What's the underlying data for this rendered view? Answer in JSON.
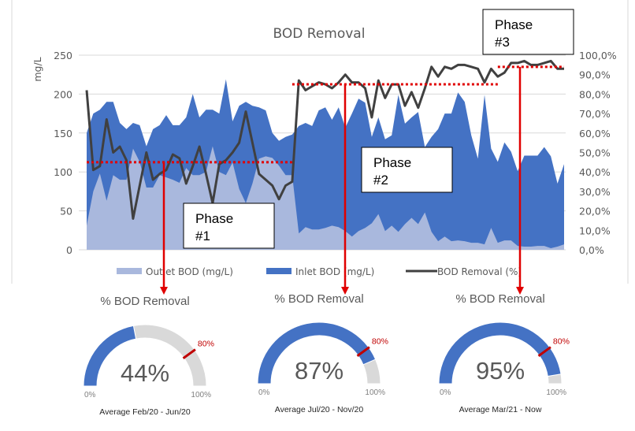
{
  "chart_data": {
    "type": "area+line",
    "title": "BOD Removal",
    "ylabel": "mg/L",
    "ylim": [
      0,
      250
    ],
    "yticks": [
      "250",
      "200",
      "150",
      "100",
      "50",
      "0"
    ],
    "y2lim": [
      0,
      100
    ],
    "y2ticks": [
      "100,0%",
      "90,0%",
      "80,0%",
      "70,0%",
      "60,0%",
      "50,0%",
      "40,0%",
      "30,0%",
      "20,0%",
      "10,0%",
      "0,0%"
    ],
    "grid": true,
    "legend_position": "bottom",
    "series": [
      {
        "name": "Outlet BOD (mg/L)",
        "type": "area",
        "axis": "left",
        "color": "#a9b8dd",
        "values": [
          31,
          75,
          98,
          63,
          96,
          90,
          90,
          130,
          113,
          80,
          80,
          96,
          93,
          90,
          86,
          105,
          96,
          96,
          100,
          133,
          100,
          96,
          112,
          78,
          60,
          85,
          117,
          120,
          118,
          108,
          96,
          96,
          21,
          29,
          26,
          26,
          28,
          31,
          29,
          24,
          17,
          24,
          28,
          34,
          46,
          24,
          31,
          23,
          33,
          41,
          33,
          48,
          23,
          11,
          17,
          11,
          12,
          11,
          9,
          9,
          7,
          28,
          9,
          12,
          12,
          5,
          4,
          4,
          5,
          5,
          2,
          4,
          7
        ]
      },
      {
        "name": "Inlet BOD (mg/L)",
        "type": "area",
        "axis": "left",
        "color": "#4472c4",
        "values": [
          150,
          175,
          180,
          190,
          190,
          163,
          155,
          163,
          160,
          133,
          155,
          160,
          173,
          160,
          160,
          170,
          200,
          170,
          180,
          180,
          175,
          219,
          165,
          185,
          190,
          185,
          183,
          179,
          150,
          140,
          145,
          148,
          159,
          163,
          159,
          179,
          183,
          167,
          183,
          157,
          175,
          194,
          189,
          145,
          170,
          142,
          147,
          199,
          162,
          170,
          177,
          132,
          145,
          155,
          175,
          175,
          202,
          190,
          147,
          117,
          199,
          130,
          113,
          138,
          126,
          101,
          121,
          121,
          121,
          132,
          120,
          85,
          110
        ]
      },
      {
        "name": "BOD Removal (%)",
        "type": "line",
        "axis": "right",
        "color": "#404040",
        "values": [
          82,
          41,
          43,
          67,
          50,
          53,
          46,
          16,
          33,
          50,
          36,
          39,
          41,
          49,
          47,
          34,
          43,
          53,
          39,
          24,
          44,
          46,
          50,
          55,
          71,
          55,
          39,
          36,
          33,
          26,
          33,
          35,
          87,
          82,
          84,
          86,
          85,
          83,
          86,
          90,
          86,
          86,
          83,
          68,
          87,
          78,
          85,
          85,
          74,
          81,
          73,
          83,
          94,
          89,
          94,
          93,
          95,
          95,
          94,
          93,
          86,
          93,
          89,
          91,
          96,
          96,
          97,
          95,
          95,
          96,
          97,
          93,
          93
        ]
      }
    ],
    "phase_averages": [
      {
        "label": "Phase #1",
        "line1": "Phase",
        "line2": "#1",
        "average_pct": 45,
        "from_index": 0,
        "to_index": 31
      },
      {
        "label": "Phase #2",
        "line1": "Phase",
        "line2": "#2",
        "average_pct": 85,
        "from_index": 31,
        "to_index": 62
      },
      {
        "label": "Phase #3",
        "line1": "Phase",
        "line2": "#3",
        "average_pct": 94,
        "from_index": 62,
        "to_index": 72
      }
    ],
    "annotation_color": "#e00000"
  },
  "gauges": [
    {
      "title": "% BOD Removal",
      "value": 44,
      "value_label": "44%",
      "min_label": "0%",
      "max_label": "100%",
      "target": 80,
      "target_label": "80%",
      "caption": "Average Feb/20 - Jun/20"
    },
    {
      "title": "% BOD Removal",
      "value": 87,
      "value_label": "87%",
      "min_label": "0%",
      "max_label": "100%",
      "target": 80,
      "target_label": "80%",
      "caption": "Average Jul/20 - Nov/20"
    },
    {
      "title": "% BOD Removal",
      "value": 95,
      "value_label": "95%",
      "min_label": "0%",
      "max_label": "100%",
      "target": 80,
      "target_label": "80%",
      "caption": "Average Mar/21 - Now"
    }
  ],
  "colors": {
    "gauge_fill": "#4472c4",
    "gauge_track": "#d9d9d9",
    "target": "#c00000"
  }
}
